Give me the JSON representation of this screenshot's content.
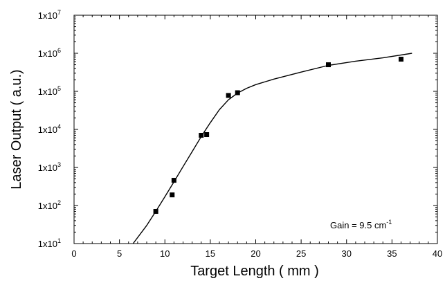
{
  "chart_data": {
    "type": "scatter",
    "title": "",
    "xlabel": "Target Length ( mm )",
    "ylabel": "Laser Output ( a.u.)",
    "xlim": [
      0,
      40
    ],
    "ylim": [
      10,
      10000000
    ],
    "yscale": "log",
    "grid": false,
    "x_ticks": [
      0,
      5,
      10,
      15,
      20,
      25,
      30,
      35,
      40
    ],
    "y_ticks": [
      {
        "base": "1x10",
        "exp": "1"
      },
      {
        "base": "1x10",
        "exp": "2"
      },
      {
        "base": "1x10",
        "exp": "3"
      },
      {
        "base": "1x10",
        "exp": "4"
      },
      {
        "base": "1x10",
        "exp": "5"
      },
      {
        "base": "1x10",
        "exp": "6"
      },
      {
        "base": "1x10",
        "exp": "7"
      }
    ],
    "points": [
      {
        "x": 9.0,
        "y": 70
      },
      {
        "x": 10.8,
        "y": 190
      },
      {
        "x": 11.0,
        "y": 460
      },
      {
        "x": 14.0,
        "y": 7000
      },
      {
        "x": 14.6,
        "y": 7300
      },
      {
        "x": 17.0,
        "y": 78000
      },
      {
        "x": 18.0,
        "y": 92000
      },
      {
        "x": 28.0,
        "y": 500000
      },
      {
        "x": 36.0,
        "y": 700000
      }
    ],
    "fit_curve": {
      "x": [
        6.5,
        8,
        9,
        10,
        11,
        12,
        13,
        14,
        15,
        16,
        17,
        18,
        19,
        20,
        22,
        25,
        28,
        31,
        34,
        37.2
      ],
      "y": [
        10,
        30,
        70,
        170,
        420,
        1050,
        2600,
        6500,
        15000,
        33000,
        60000,
        90000,
        120000,
        150000,
        210000,
        320000,
        480000,
        620000,
        760000,
        1000000
      ]
    },
    "annotation": {
      "text": "Gain = 9.5 cm",
      "sup": "-1"
    }
  }
}
